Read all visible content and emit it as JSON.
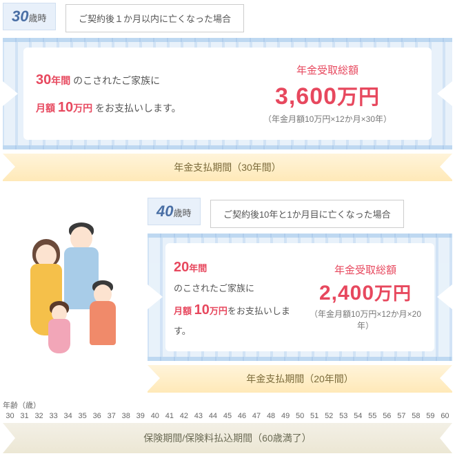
{
  "case1": {
    "age_num": "30",
    "age_suffix": "歳時",
    "condition": "ご契約後１か月以内に亡くなった場合",
    "years_num": "30",
    "years_label": "年間",
    "family_text": " のこされたご家族に",
    "monthly_prefix": "月額 ",
    "monthly_num": "10",
    "monthly_unit": "万円",
    "monthly_suffix": " をお支払いします。",
    "total_label": "年金受取総額",
    "total_num": "3,600",
    "total_unit": "万円",
    "calc_note": "（年金月額10万円×12か月×30年）",
    "period_bar": "年金支払期間（30年間）"
  },
  "case2": {
    "age_num": "40",
    "age_suffix": "歳時",
    "condition": "ご契約後10年と1か月目に亡くなった場合",
    "years_num": "20",
    "years_label": "年間",
    "family_text": "のこされたご家族に",
    "monthly_prefix": "月額 ",
    "monthly_num": "10",
    "monthly_unit": "万円",
    "monthly_suffix": "をお支払いします。",
    "total_label": "年金受取総額",
    "total_num": "2,400",
    "total_unit": "万円",
    "calc_note": "（年金月額10万円×12か月×20年）",
    "period_bar": "年金支払期間（20年間）"
  },
  "axis_label": "年齢（歳）",
  "axis_start": 30,
  "axis_end": 60,
  "full_period": "保険期間/保険料払込期間（60歳満了）",
  "colors": {
    "accent_red": "#e7485e",
    "badge_bg": "#e8f0fa",
    "coin_a": "#cde0f5",
    "coin_b": "#e6f0fa",
    "period_bar_top": "#fff4da",
    "period_bar_bottom": "#ffe9b8",
    "full_bar_top": "#f3f0e6",
    "full_bar_bottom": "#ece7d4"
  }
}
